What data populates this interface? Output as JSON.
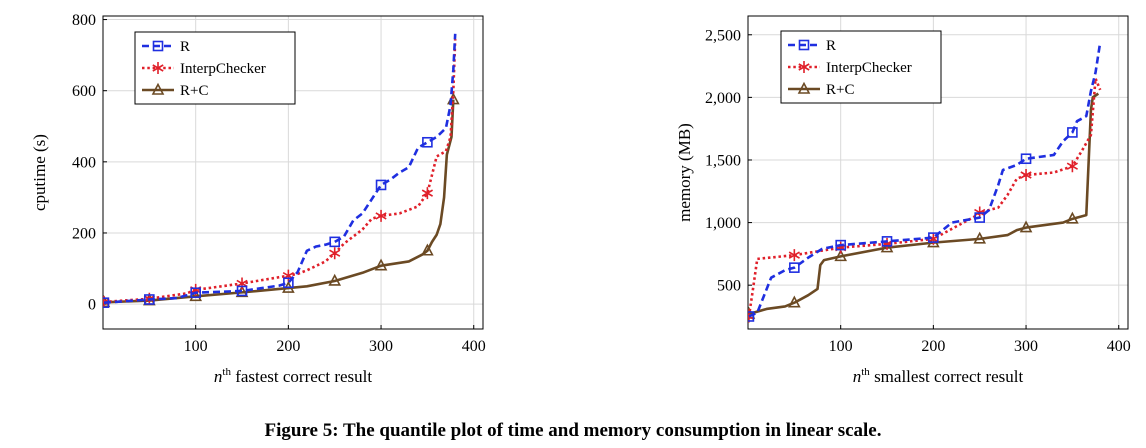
{
  "figure": {
    "caption": "Figure 5: The quantile plot of time and memory consumption in linear scale."
  },
  "colors": {
    "R": "#1f2fe0",
    "InterpChecker": "#e0202a",
    "R+C": "#6b4a24",
    "grid": "#d9d9d9"
  },
  "chart_data": [
    {
      "type": "line",
      "xlabel": "fastest correct result",
      "xlabel_prefix": "n",
      "xlabel_sup": "th",
      "ylabel": "cputime (s)",
      "xlim": [
        0,
        410
      ],
      "ylim": [
        -70,
        810
      ],
      "xticks": [
        100,
        200,
        300,
        400
      ],
      "yticks": [
        0,
        200,
        400,
        600,
        800
      ],
      "ytick_labels": [
        "0",
        "200",
        "400",
        "600",
        "800"
      ],
      "grid": true,
      "legend_position": "top-left",
      "series": [
        {
          "name": "R",
          "marker": "square",
          "style": "dashed",
          "x": [
            1,
            50,
            80,
            100,
            150,
            190,
            200,
            210,
            220,
            230,
            240,
            250,
            260,
            270,
            280,
            290,
            300,
            310,
            320,
            330,
            340,
            350,
            360,
            370,
            375,
            378,
            380
          ],
          "y": [
            4,
            13,
            17,
            32,
            37,
            52,
            60,
            90,
            150,
            162,
            167,
            175,
            190,
            235,
            255,
            295,
            335,
            350,
            370,
            385,
            440,
            455,
            470,
            495,
            560,
            660,
            760
          ],
          "marker_x": [
            1,
            50,
            100,
            150,
            200,
            250,
            300,
            350
          ]
        },
        {
          "name": "InterpChecker",
          "marker": "star",
          "style": "dotted",
          "x": [
            1,
            50,
            90,
            100,
            150,
            200,
            210,
            220,
            240,
            250,
            260,
            280,
            290,
            300,
            320,
            340,
            350,
            360,
            370,
            375,
            378,
            380
          ],
          "y": [
            6,
            15,
            30,
            40,
            58,
            80,
            85,
            95,
            120,
            143,
            170,
            210,
            240,
            248,
            255,
            275,
            312,
            415,
            430,
            470,
            600,
            745
          ],
          "marker_x": [
            1,
            50,
            100,
            150,
            200,
            250,
            300,
            350
          ]
        },
        {
          "name": "R+C",
          "marker": "triangle",
          "style": "solid",
          "x": [
            1,
            50,
            100,
            150,
            200,
            220,
            250,
            280,
            300,
            330,
            345,
            350,
            355,
            360,
            364,
            368,
            371,
            373,
            376,
            378
          ],
          "y": [
            5,
            10,
            22,
            33,
            45,
            50,
            65,
            88,
            108,
            120,
            140,
            150,
            175,
            195,
            225,
            300,
            420,
            440,
            470,
            575
          ],
          "marker_x": [
            1,
            50,
            100,
            150,
            200,
            250,
            300,
            350,
            378
          ]
        }
      ]
    },
    {
      "type": "line",
      "xlabel": "smallest correct result",
      "xlabel_prefix": "n",
      "xlabel_sup": "th",
      "ylabel": "memory (MB)",
      "xlim": [
        0,
        410
      ],
      "ylim": [
        150,
        2650
      ],
      "xticks": [
        100,
        200,
        300,
        400
      ],
      "yticks": [
        500,
        1000,
        1500,
        2000,
        2500
      ],
      "ytick_labels": [
        "500",
        "1,000",
        "1,500",
        "2,000",
        "2,500"
      ],
      "grid": true,
      "legend_position": "top-left",
      "series": [
        {
          "name": "R",
          "marker": "square",
          "style": "dashed",
          "x": [
            1,
            10,
            25,
            40,
            50,
            65,
            80,
            100,
            150,
            200,
            220,
            250,
            260,
            270,
            275,
            290,
            300,
            330,
            340,
            350,
            355,
            365,
            370,
            375,
            380
          ],
          "y": [
            250,
            280,
            560,
            620,
            640,
            720,
            790,
            820,
            850,
            880,
            1000,
            1040,
            1100,
            1300,
            1420,
            1460,
            1510,
            1540,
            1650,
            1720,
            1810,
            1850,
            2050,
            2200,
            2440
          ],
          "marker_x": [
            1,
            50,
            100,
            150,
            200,
            250,
            300,
            350
          ]
        },
        {
          "name": "InterpChecker",
          "marker": "star",
          "style": "dotted",
          "x": [
            1,
            5,
            10,
            50,
            100,
            150,
            200,
            245,
            250,
            270,
            280,
            290,
            300,
            330,
            350,
            360,
            370,
            375,
            380
          ],
          "y": [
            250,
            450,
            710,
            740,
            800,
            830,
            870,
            1050,
            1080,
            1120,
            1220,
            1350,
            1380,
            1400,
            1450,
            1570,
            1700,
            2150,
            2060
          ],
          "marker_x": [
            1,
            50,
            100,
            150,
            200,
            250,
            300,
            350
          ]
        },
        {
          "name": "R+C",
          "marker": "triangle",
          "style": "solid",
          "x": [
            1,
            20,
            40,
            50,
            65,
            75,
            78,
            82,
            100,
            150,
            200,
            250,
            280,
            290,
            300,
            340,
            350,
            365,
            370,
            372,
            378
          ],
          "y": [
            270,
            310,
            330,
            360,
            420,
            470,
            660,
            700,
            730,
            800,
            840,
            870,
            900,
            940,
            960,
            1000,
            1030,
            1060,
            1900,
            2000,
            2030
          ],
          "marker_x": [
            1,
            50,
            100,
            150,
            200,
            250,
            300,
            350
          ]
        }
      ]
    }
  ]
}
